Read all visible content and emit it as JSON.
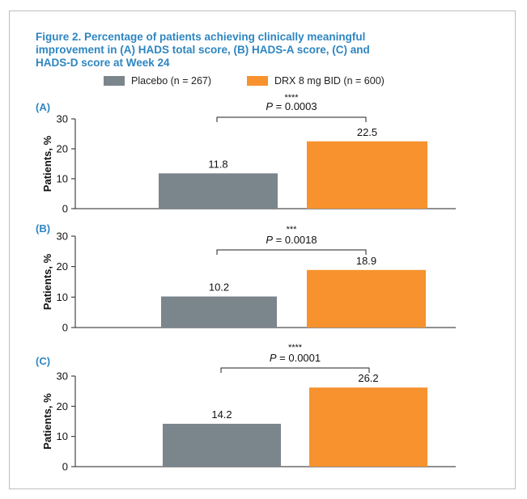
{
  "title_lines": [
    "Figure 2. Percentage of patients achieving clinically meaningful",
    "improvement in (A) HADS total score, (B) HADS-A score, (C) and",
    "HADS-D score at Week 24"
  ],
  "legend": [
    {
      "label": "Placebo (n = 267)",
      "color": "#7b858c"
    },
    {
      "label": "DRX 8 mg BID (n = 600)",
      "color": "#f7922e"
    }
  ],
  "colors": {
    "title": "#2e86c1",
    "panel_label": "#2e86c1"
  },
  "chart_data": [
    {
      "type": "bar",
      "panel_label": "(A)",
      "categories": [
        "Placebo (n = 267)",
        "DRX 8 mg BID (n = 600)"
      ],
      "values": [
        11.8,
        22.5
      ],
      "value_labels": [
        "11.8",
        "22.5"
      ],
      "ylabel": "Patients, %",
      "ylim": [
        0,
        30
      ],
      "yticks": [
        "0",
        "10",
        "20",
        "30"
      ],
      "significance": {
        "stars": "****",
        "p_prefix": "P",
        "p_rest": " = 0.0003"
      }
    },
    {
      "type": "bar",
      "panel_label": "(B)",
      "categories": [
        "Placebo (n = 267)",
        "DRX 8 mg BID (n = 600)"
      ],
      "values": [
        10.2,
        18.9
      ],
      "value_labels": [
        "10.2",
        "18.9"
      ],
      "ylabel": "Patients, %",
      "ylim": [
        0,
        30
      ],
      "yticks": [
        "0",
        "10",
        "20",
        "30"
      ],
      "significance": {
        "stars": "***",
        "p_prefix": "P",
        "p_rest": " = 0.0018"
      }
    },
    {
      "type": "bar",
      "panel_label": "(C)",
      "categories": [
        "Placebo (n = 267)",
        "DRX 8 mg BID (n = 600)"
      ],
      "values": [
        14.2,
        26.2
      ],
      "value_labels": [
        "14.2",
        "26.2"
      ],
      "ylabel": "Patients, %",
      "ylim": [
        0,
        30
      ],
      "yticks": [
        "0",
        "10",
        "20",
        "30"
      ],
      "significance": {
        "stars": "****",
        "p_prefix": "P",
        "p_rest": " = 0.0001"
      }
    }
  ]
}
